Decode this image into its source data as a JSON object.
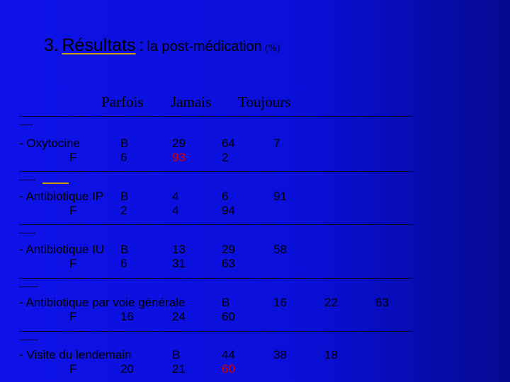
{
  "title": {
    "number": "3.",
    "main": "Résultats",
    "sep": ":",
    "sub": "la post-médication",
    "unit": "(%)"
  },
  "headers": [
    "Parfois",
    "Jamais",
    "Toujours"
  ],
  "separator": {
    "line": "-------------------------------------------------------------------------------------------------------------------------------------------------",
    "tails": [
      "-----",
      "------",
      "------",
      "-------",
      "-------"
    ]
  },
  "rows": [
    {
      "label": "- Oxytocine",
      "b": {
        "tag": "B",
        "v": [
          "29",
          "64",
          "7"
        ]
      },
      "f": {
        "tag": "F",
        "v": [
          "6",
          "93",
          "2"
        ]
      }
    },
    {
      "label": "- Antibiotique IP",
      "b": {
        "tag": "B",
        "v": [
          "4",
          "6",
          "91"
        ]
      },
      "f": {
        "tag": "F",
        "v": [
          "2",
          "4",
          "94"
        ]
      }
    },
    {
      "label": "- Antibiotique IU",
      "b": {
        "tag": "B",
        "v": [
          "13",
          "29",
          "58"
        ]
      },
      "f": {
        "tag": "F",
        "v": [
          "6",
          "31",
          "63"
        ]
      }
    },
    {
      "label": "- Antibiotique par voie générale",
      "b": {
        "tag": "B",
        "v": [
          "16",
          "22",
          "63"
        ]
      },
      "f": {
        "tag": "F",
        "v": [
          "16",
          "24",
          "60"
        ]
      }
    },
    {
      "label": "- Visite du lendemain",
      "b": {
        "tag": "B",
        "v": [
          "44",
          "38",
          "18"
        ]
      },
      "f": {
        "tag": "F",
        "v": [
          "20",
          "21",
          "60"
        ]
      }
    }
  ],
  "colors": {
    "background": "#0e12e8",
    "highlight": "#d80000",
    "underline": "#c9a000"
  }
}
